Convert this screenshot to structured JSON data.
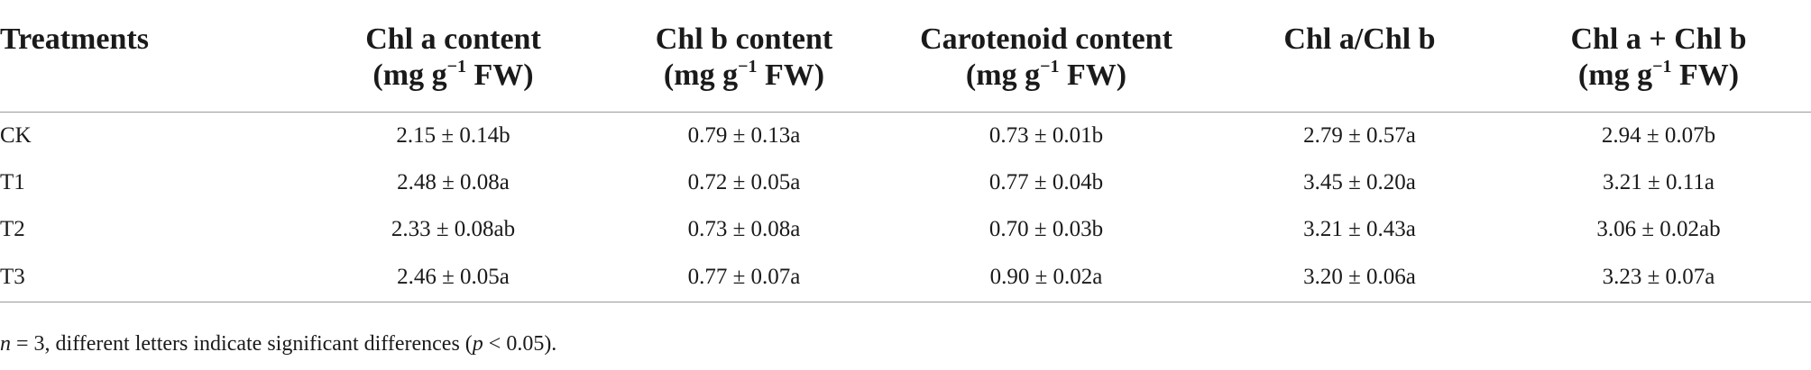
{
  "table": {
    "headers": [
      {
        "line1": "Treatments",
        "line2": "",
        "sup": "",
        "line2_rest": ""
      },
      {
        "line1": "Chl a content",
        "line2": "(mg g",
        "sup": "−1",
        "line2_rest": " FW)"
      },
      {
        "line1": "Chl b content",
        "line2": "(mg g",
        "sup": "−1",
        "line2_rest": " FW)"
      },
      {
        "line1": "Carotenoid content",
        "line2": "(mg g",
        "sup": "−1",
        "line2_rest": " FW)"
      },
      {
        "line1": "Chl a/Chl b",
        "line2": "",
        "sup": "",
        "line2_rest": ""
      },
      {
        "line1": "Chl a + Chl b",
        "line2": "(mg g",
        "sup": "−1",
        "line2_rest": " FW)"
      }
    ],
    "rows": [
      {
        "cells": [
          "CK",
          "2.15 ± 0.14b",
          "0.79 ± 0.13a",
          "0.73 ± 0.01b",
          "2.79 ± 0.57a",
          "2.94 ± 0.07b"
        ]
      },
      {
        "cells": [
          "T1",
          "2.48 ± 0.08a",
          "0.72 ± 0.05a",
          "0.77 ± 0.04b",
          "3.45 ± 0.20a",
          "3.21 ± 0.11a"
        ]
      },
      {
        "cells": [
          "T2",
          "2.33 ± 0.08ab",
          "0.73 ± 0.08a",
          "0.70 ± 0.03b",
          "3.21 ± 0.43a",
          "3.06 ± 0.02ab"
        ]
      },
      {
        "cells": [
          "T3",
          "2.46 ± 0.05a",
          "0.77 ± 0.07a",
          "0.90 ± 0.02a",
          "3.20 ± 0.06a",
          "3.23 ± 0.07a"
        ]
      }
    ]
  },
  "footnote": {
    "n_symbol": "n",
    "text_a": " = 3, different letters indicate significant differences (",
    "p_symbol": "p",
    "text_b": " < 0.05)."
  }
}
